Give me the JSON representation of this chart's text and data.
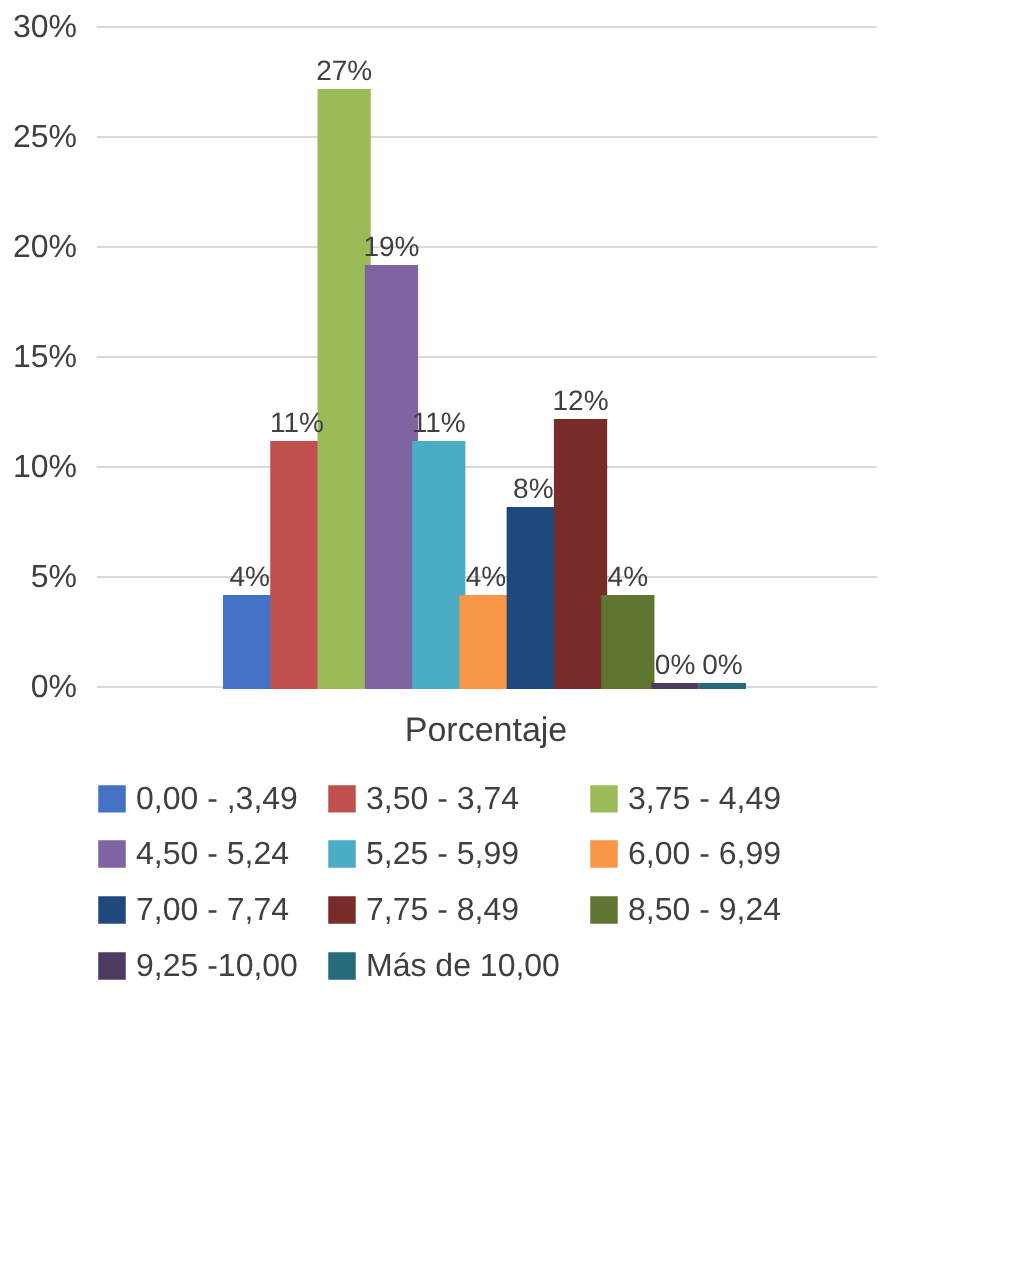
{
  "chart_data": {
    "type": "bar",
    "categories": [
      "Porcentaje"
    ],
    "ylim": [
      0,
      30
    ],
    "yticks": [
      {
        "value": 0,
        "label": "0%"
      },
      {
        "value": 5,
        "label": "5%"
      },
      {
        "value": 10,
        "label": "10%"
      },
      {
        "value": 15,
        "label": "15%"
      },
      {
        "value": 20,
        "label": "20%"
      },
      {
        "value": 25,
        "label": "25%"
      },
      {
        "value": 30,
        "label": "30%"
      }
    ],
    "grid": "y",
    "legend": "bottom",
    "series": [
      {
        "name": "0,00 - ,3,49",
        "color": "#4472c4",
        "values": [
          4
        ],
        "value_labels": [
          "4%"
        ]
      },
      {
        "name": "3,50 - 3,74",
        "color": "#c0504d",
        "values": [
          11
        ],
        "value_labels": [
          "11%"
        ]
      },
      {
        "name": "3,75 - 4,49",
        "color": "#9bbb59",
        "values": [
          27
        ],
        "value_labels": [
          "27%"
        ]
      },
      {
        "name": "4,50 - 5,24",
        "color": "#8064a2",
        "values": [
          19
        ],
        "value_labels": [
          "19%"
        ]
      },
      {
        "name": "5,25 - 5,99",
        "color": "#4bacc6",
        "values": [
          11
        ],
        "value_labels": [
          "11%"
        ]
      },
      {
        "name": "6,00 - 6,99",
        "color": "#f79646",
        "values": [
          4
        ],
        "value_labels": [
          "4%"
        ]
      },
      {
        "name": "7,00 - 7,74",
        "color": "#1f497d",
        "values": [
          8
        ],
        "value_labels": [
          "8%"
        ]
      },
      {
        "name": "7,75 - 8,49",
        "color": "#772c2a",
        "values": [
          12
        ],
        "value_labels": [
          "12%"
        ]
      },
      {
        "name": "8,50 - 9,24",
        "color": "#5f7530",
        "values": [
          4
        ],
        "value_labels": [
          "4%"
        ]
      },
      {
        "name": "9,25 -10,00",
        "color": "#4d3b62",
        "values": [
          0
        ],
        "value_labels": [
          "0%"
        ]
      },
      {
        "name": "Más de 10,00",
        "color": "#276a7c",
        "values": [
          0
        ],
        "value_labels": [
          "0%"
        ]
      }
    ]
  }
}
